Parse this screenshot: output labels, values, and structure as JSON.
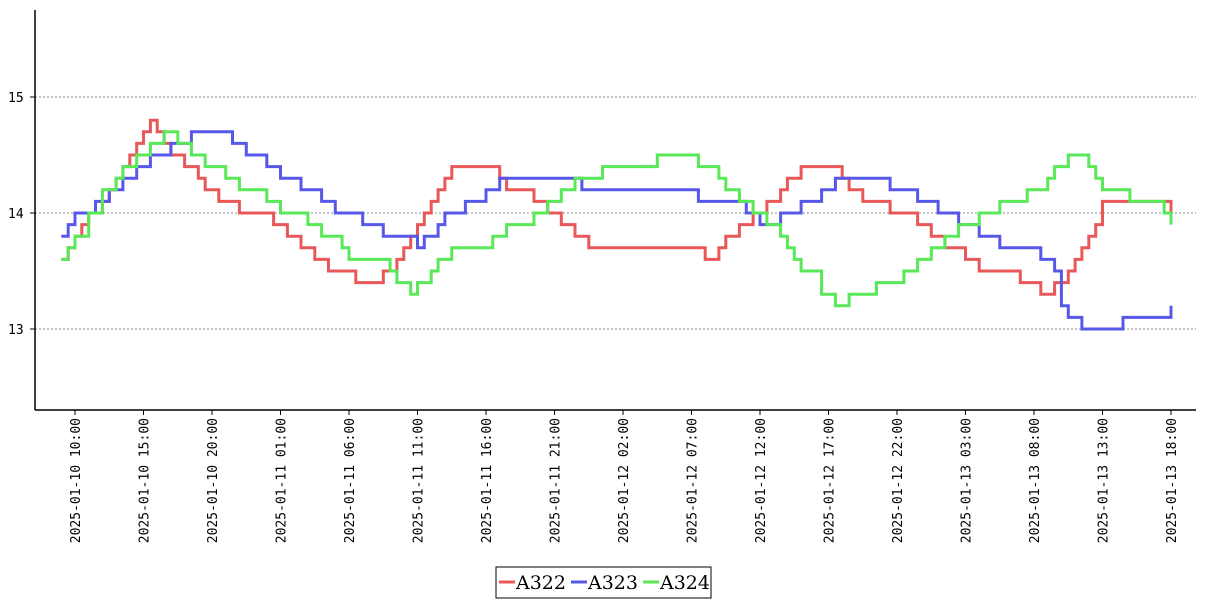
{
  "chart_data": {
    "type": "line",
    "title": "",
    "xlabel": "",
    "ylabel": "",
    "ylim": [
      12.3,
      15.75
    ],
    "y_ticks": [
      13,
      14,
      15
    ],
    "x_range": [
      "2025-01-10 09:00",
      "2025-01-13 18:30"
    ],
    "x_tick_labels": [
      "2025-01-10 10:00",
      "2025-01-10 15:00",
      "2025-01-10 20:00",
      "2025-01-11 01:00",
      "2025-01-11 06:00",
      "2025-01-11 11:00",
      "2025-01-11 16:00",
      "2025-01-11 21:00",
      "2025-01-12 02:00",
      "2025-01-12 07:00",
      "2025-01-12 12:00",
      "2025-01-12 17:00",
      "2025-01-12 22:00",
      "2025-01-13 03:00",
      "2025-01-13 08:00",
      "2025-01-13 13:00",
      "2025-01-13 18:00"
    ],
    "grid": "horizontal dotted",
    "legend_position": "bottom-center",
    "step_style": "post",
    "series": [
      {
        "name": "A322",
        "color": "#e85858",
        "x": [
          "2025-01-10 09:00",
          "2025-01-10 09:30",
          "2025-01-10 10:00",
          "2025-01-10 10:30",
          "2025-01-10 11:00",
          "2025-01-10 12:00",
          "2025-01-10 12:30",
          "2025-01-10 13:00",
          "2025-01-10 13:30",
          "2025-01-10 14:00",
          "2025-01-10 14:30",
          "2025-01-10 15:00",
          "2025-01-10 15:30",
          "2025-01-10 16:00",
          "2025-01-10 16:30",
          "2025-01-10 17:00",
          "2025-01-10 18:00",
          "2025-01-10 19:00",
          "2025-01-10 19:30",
          "2025-01-10 20:30",
          "2025-01-10 22:00",
          "2025-01-11 00:30",
          "2025-01-11 01:30",
          "2025-01-11 02:30",
          "2025-01-11 03:30",
          "2025-01-11 04:30",
          "2025-01-11 06:30",
          "2025-01-11 07:00",
          "2025-01-11 08:30",
          "2025-01-11 09:30",
          "2025-01-11 10:00",
          "2025-01-11 10:30",
          "2025-01-11 11:00",
          "2025-01-11 11:30",
          "2025-01-11 12:00",
          "2025-01-11 12:30",
          "2025-01-11 13:00",
          "2025-01-11 13:30",
          "2025-01-11 14:00",
          "2025-01-11 17:00",
          "2025-01-11 17:30",
          "2025-01-11 19:30",
          "2025-01-11 20:30",
          "2025-01-11 21:30",
          "2025-01-11 22:30",
          "2025-01-11 23:30",
          "2025-01-12 01:30",
          "2025-01-12 02:00",
          "2025-01-12 04:00",
          "2025-01-12 08:00",
          "2025-01-12 09:00",
          "2025-01-12 09:30",
          "2025-01-12 10:30",
          "2025-01-12 11:30",
          "2025-01-12 12:30",
          "2025-01-12 13:30",
          "2025-01-12 14:00",
          "2025-01-12 14:30",
          "2025-01-12 15:00",
          "2025-01-12 15:30",
          "2025-01-12 16:00",
          "2025-01-12 18:00",
          "2025-01-12 18:30",
          "2025-01-12 19:30",
          "2025-01-12 21:30",
          "2025-01-12 23:30",
          "2025-01-13 00:30",
          "2025-01-13 01:30",
          "2025-01-13 03:00",
          "2025-01-13 04:00",
          "2025-01-13 07:00",
          "2025-01-13 08:30",
          "2025-01-13 09:30",
          "2025-01-13 10:30",
          "2025-01-13 11:00",
          "2025-01-13 11:30",
          "2025-01-13 12:00",
          "2025-01-13 12:30",
          "2025-01-13 13:00",
          "2025-01-13 18:00",
          "2025-01-13 18:00"
        ],
        "values": [
          13.6,
          13.7,
          13.8,
          13.9,
          14.0,
          14.1,
          14.2,
          14.3,
          14.4,
          14.5,
          14.6,
          14.7,
          14.8,
          14.7,
          14.6,
          14.5,
          14.4,
          14.3,
          14.2,
          14.1,
          14.0,
          13.9,
          13.8,
          13.7,
          13.6,
          13.5,
          13.4,
          13.4,
          13.5,
          13.6,
          13.7,
          13.8,
          13.9,
          14.0,
          14.1,
          14.2,
          14.3,
          14.4,
          14.4,
          14.3,
          14.2,
          14.1,
          14.0,
          13.9,
          13.8,
          13.7,
          13.7,
          13.7,
          13.7,
          13.6,
          13.7,
          13.8,
          13.9,
          14.0,
          14.1,
          14.2,
          14.3,
          14.3,
          14.4,
          14.4,
          14.4,
          14.3,
          14.2,
          14.1,
          14.0,
          13.9,
          13.8,
          13.7,
          13.6,
          13.5,
          13.4,
          13.3,
          13.4,
          13.5,
          13.6,
          13.7,
          13.8,
          13.9,
          14.1,
          14.1,
          14.0
        ]
      },
      {
        "name": "A323",
        "color": "#5858e8",
        "x": [
          "2025-01-10 09:00",
          "2025-01-10 09:30",
          "2025-01-10 10:00",
          "2025-01-10 11:30",
          "2025-01-10 12:30",
          "2025-01-10 13:30",
          "2025-01-10 14:30",
          "2025-01-10 15:30",
          "2025-01-10 17:00",
          "2025-01-10 18:30",
          "2025-01-10 21:30",
          "2025-01-10 22:30",
          "2025-01-11 00:00",
          "2025-01-11 01:00",
          "2025-01-11 02:30",
          "2025-01-11 04:00",
          "2025-01-11 05:00",
          "2025-01-11 07:00",
          "2025-01-11 08:30",
          "2025-01-11 11:00",
          "2025-01-11 11:30",
          "2025-01-11 12:30",
          "2025-01-11 13:00",
          "2025-01-11 14:30",
          "2025-01-11 16:00",
          "2025-01-11 17:00",
          "2025-01-11 21:00",
          "2025-01-11 23:00",
          "2025-01-12 07:30",
          "2025-01-12 11:00",
          "2025-01-12 12:00",
          "2025-01-12 13:30",
          "2025-01-12 15:00",
          "2025-01-12 16:30",
          "2025-01-12 17:30",
          "2025-01-12 21:30",
          "2025-01-12 23:30",
          "2025-01-13 01:00",
          "2025-01-13 02:30",
          "2025-01-13 04:00",
          "2025-01-13 05:30",
          "2025-01-13 08:30",
          "2025-01-13 09:30",
          "2025-01-13 10:00",
          "2025-01-13 10:30",
          "2025-01-13 11:30",
          "2025-01-13 14:30",
          "2025-01-13 18:00",
          "2025-01-13 18:00"
        ],
        "values": [
          13.8,
          13.9,
          14.0,
          14.1,
          14.2,
          14.3,
          14.4,
          14.5,
          14.6,
          14.7,
          14.6,
          14.5,
          14.4,
          14.3,
          14.2,
          14.1,
          14.0,
          13.9,
          13.8,
          13.7,
          13.8,
          13.9,
          14.0,
          14.1,
          14.2,
          14.3,
          14.3,
          14.2,
          14.1,
          14.0,
          13.9,
          14.0,
          14.1,
          14.2,
          14.3,
          14.2,
          14.1,
          14.0,
          13.9,
          13.8,
          13.7,
          13.6,
          13.5,
          13.2,
          13.1,
          13.0,
          13.1,
          13.2,
          13.2
        ]
      },
      {
        "name": "A324",
        "color": "#58e858",
        "x": [
          "2025-01-10 09:00",
          "2025-01-10 09:30",
          "2025-01-10 10:00",
          "2025-01-10 11:00",
          "2025-01-10 12:00",
          "2025-01-10 13:00",
          "2025-01-10 13:30",
          "2025-01-10 14:30",
          "2025-01-10 15:30",
          "2025-01-10 16:30",
          "2025-01-10 17:30",
          "2025-01-10 18:30",
          "2025-01-10 19:30",
          "2025-01-10 21:00",
          "2025-01-10 22:00",
          "2025-01-11 00:00",
          "2025-01-11 01:00",
          "2025-01-11 03:00",
          "2025-01-11 04:00",
          "2025-01-11 05:30",
          "2025-01-11 06:00",
          "2025-01-11 09:00",
          "2025-01-11 09:30",
          "2025-01-11 10:30",
          "2025-01-11 11:00",
          "2025-01-11 12:00",
          "2025-01-11 12:30",
          "2025-01-11 13:30",
          "2025-01-11 16:30",
          "2025-01-11 17:30",
          "2025-01-11 19:30",
          "2025-01-11 20:30",
          "2025-01-11 21:30",
          "2025-01-11 22:30",
          "2025-01-12 00:30",
          "2025-01-12 03:30",
          "2025-01-12 04:30",
          "2025-01-12 07:30",
          "2025-01-12 09:00",
          "2025-01-12 09:30",
          "2025-01-12 10:30",
          "2025-01-12 11:30",
          "2025-01-12 12:30",
          "2025-01-12 13:30",
          "2025-01-12 14:00",
          "2025-01-12 14:30",
          "2025-01-12 15:00",
          "2025-01-12 16:30",
          "2025-01-12 17:30",
          "2025-01-12 18:30",
          "2025-01-12 20:30",
          "2025-01-12 22:30",
          "2025-01-12 23:30",
          "2025-01-13 00:30",
          "2025-01-13 01:30",
          "2025-01-13 02:30",
          "2025-01-13 04:00",
          "2025-01-13 05:30",
          "2025-01-13 07:30",
          "2025-01-13 09:00",
          "2025-01-13 09:30",
          "2025-01-13 10:30",
          "2025-01-13 11:30",
          "2025-01-13 12:00",
          "2025-01-13 12:30",
          "2025-01-13 13:00",
          "2025-01-13 15:00",
          "2025-01-13 17:30",
          "2025-01-13 18:00",
          "2025-01-13 18:00"
        ],
        "values": [
          13.6,
          13.7,
          13.8,
          14.0,
          14.2,
          14.3,
          14.4,
          14.5,
          14.6,
          14.7,
          14.6,
          14.5,
          14.4,
          14.3,
          14.2,
          14.1,
          14.0,
          13.9,
          13.8,
          13.7,
          13.6,
          13.5,
          13.4,
          13.3,
          13.4,
          13.5,
          13.6,
          13.7,
          13.8,
          13.9,
          14.0,
          14.1,
          14.2,
          14.3,
          14.4,
          14.4,
          14.5,
          14.4,
          14.3,
          14.2,
          14.1,
          14.0,
          13.9,
          13.8,
          13.7,
          13.6,
          13.5,
          13.3,
          13.2,
          13.3,
          13.4,
          13.5,
          13.6,
          13.7,
          13.8,
          13.9,
          14.0,
          14.1,
          14.2,
          14.3,
          14.4,
          14.5,
          14.5,
          14.4,
          14.3,
          14.2,
          14.1,
          14.0,
          13.9,
          13.9
        ]
      }
    ]
  }
}
